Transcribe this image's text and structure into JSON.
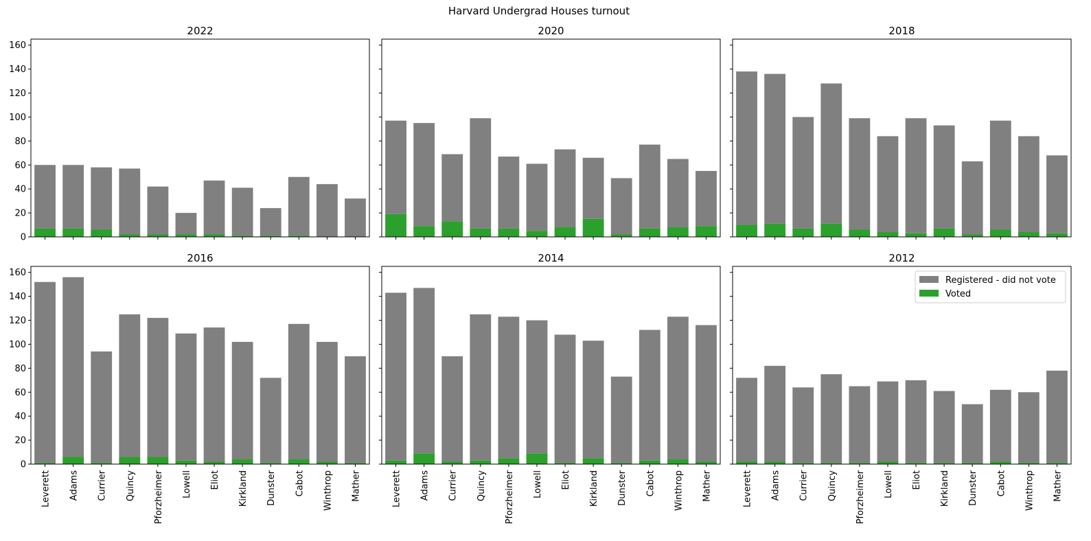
{
  "chart_data": {
    "type": "bar",
    "stacked": true,
    "title": "Harvard Undergrad Houses turnout",
    "categories": [
      "Leverett",
      "Adams",
      "Currier",
      "Quincy",
      "Pforzheimer",
      "Lowell",
      "Eliot",
      "Kirkland",
      "Dunster",
      "Cabot",
      "Winthrop",
      "Mather"
    ],
    "ylim": [
      0,
      165
    ],
    "yticks": [
      0,
      20,
      40,
      60,
      80,
      100,
      120,
      140,
      160
    ],
    "shared_y": true,
    "shared_x": true,
    "legend": {
      "placement": "top-right",
      "panel": "2012",
      "entries": [
        "Registered - did not vote",
        "Voted"
      ]
    },
    "colors": {
      "registered": "#808080",
      "voted": "#2ca02c"
    },
    "panels": [
      {
        "title": "2022",
        "series": [
          {
            "name": "Voted",
            "values": [
              7,
              7,
              6,
              2,
              2,
              2,
              2,
              1,
              1,
              1,
              0,
              0
            ]
          },
          {
            "name": "Registered - did not vote",
            "values": [
              53,
              53,
              52,
              55,
              40,
              18,
              45,
              40,
              23,
              49,
              44,
              32
            ]
          }
        ]
      },
      {
        "title": "2020",
        "series": [
          {
            "name": "Voted",
            "values": [
              19,
              9,
              13,
              7,
              7,
              5,
              8,
              15,
              2,
              7,
              8,
              9
            ]
          },
          {
            "name": "Registered - did not vote",
            "values": [
              78,
              86,
              56,
              92,
              60,
              56,
              65,
              51,
              47,
              70,
              57,
              46
            ]
          }
        ]
      },
      {
        "title": "2018",
        "series": [
          {
            "name": "Voted",
            "values": [
              10,
              11,
              7,
              11,
              6,
              4,
              3,
              7,
              2,
              6,
              4,
              3
            ]
          },
          {
            "name": "Registered - did not vote",
            "values": [
              128,
              125,
              93,
              117,
              93,
              80,
              96,
              86,
              61,
              91,
              80,
              65
            ]
          }
        ]
      },
      {
        "title": "2016",
        "series": [
          {
            "name": "Voted",
            "values": [
              1,
              6,
              1,
              6,
              6,
              3,
              2,
              4,
              1,
              4,
              2,
              1
            ]
          },
          {
            "name": "Registered - did not vote",
            "values": [
              151,
              150,
              93,
              119,
              116,
              106,
              112,
              98,
              71,
              113,
              100,
              89
            ]
          }
        ]
      },
      {
        "title": "2014",
        "series": [
          {
            "name": "Voted",
            "values": [
              3,
              9,
              2,
              3,
              5,
              9,
              1,
              5,
              1,
              3,
              4,
              2
            ]
          },
          {
            "name": "Registered - did not vote",
            "values": [
              140,
              138,
              88,
              122,
              118,
              111,
              107,
              98,
              72,
              109,
              119,
              114
            ]
          }
        ]
      },
      {
        "title": "2012",
        "series": [
          {
            "name": "Voted",
            "values": [
              2,
              2,
              1,
              1,
              1,
              2,
              1,
              1,
              1,
              2,
              1,
              1
            ]
          },
          {
            "name": "Registered - did not vote",
            "values": [
              70,
              80,
              63,
              74,
              64,
              67,
              69,
              60,
              49,
              60,
              59,
              77
            ]
          }
        ]
      }
    ]
  }
}
